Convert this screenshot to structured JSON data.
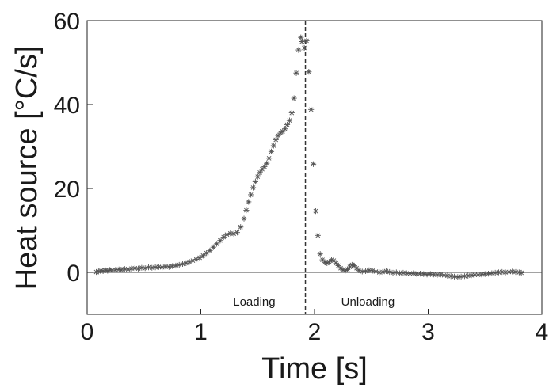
{
  "chart_data": {
    "type": "scatter",
    "xlabel": "Time [s]",
    "ylabel": "Heat source [°C/s]",
    "xlim": [
      0,
      4
    ],
    "ylim": [
      -10,
      60
    ],
    "xticks": [
      "0",
      "1",
      "2",
      "3",
      "4"
    ],
    "yticks": [
      "0",
      "20",
      "40",
      "60"
    ],
    "grid": false,
    "marker": "asterisk",
    "marker_color": "#555555",
    "vline": {
      "x": 1.92,
      "style": "dashed"
    },
    "hline": {
      "y": 0
    },
    "annotations": [
      {
        "text": "Loading",
        "x": 1.47,
        "y": -7
      },
      {
        "text": "Unloading",
        "x": 2.47,
        "y": -7
      }
    ],
    "points": [
      [
        0.08,
        0.1
      ],
      [
        0.1,
        0.2
      ],
      [
        0.12,
        0.4
      ],
      [
        0.14,
        0.3
      ],
      [
        0.16,
        0.5
      ],
      [
        0.18,
        0.4
      ],
      [
        0.2,
        0.6
      ],
      [
        0.22,
        0.5
      ],
      [
        0.25,
        0.6
      ],
      [
        0.28,
        0.7
      ],
      [
        0.3,
        0.6
      ],
      [
        0.33,
        0.8
      ],
      [
        0.36,
        0.7
      ],
      [
        0.39,
        0.9
      ],
      [
        0.42,
        1.0
      ],
      [
        0.45,
        0.9
      ],
      [
        0.48,
        1.1
      ],
      [
        0.51,
        1.0
      ],
      [
        0.54,
        1.2
      ],
      [
        0.57,
        1.1
      ],
      [
        0.6,
        1.2
      ],
      [
        0.63,
        1.3
      ],
      [
        0.66,
        1.2
      ],
      [
        0.69,
        1.4
      ],
      [
        0.72,
        1.3
      ],
      [
        0.75,
        1.5
      ],
      [
        0.78,
        1.6
      ],
      [
        0.81,
        1.8
      ],
      [
        0.84,
        2.0
      ],
      [
        0.87,
        2.2
      ],
      [
        0.9,
        2.5
      ],
      [
        0.93,
        2.8
      ],
      [
        0.96,
        3.1
      ],
      [
        0.99,
        3.5
      ],
      [
        1.02,
        4.0
      ],
      [
        1.05,
        4.6
      ],
      [
        1.08,
        5.2
      ],
      [
        1.11,
        6.0
      ],
      [
        1.14,
        6.8
      ],
      [
        1.17,
        7.6
      ],
      [
        1.2,
        8.4
      ],
      [
        1.23,
        9.0
      ],
      [
        1.26,
        9.3
      ],
      [
        1.29,
        9.2
      ],
      [
        1.32,
        9.5
      ],
      [
        1.35,
        10.8
      ],
      [
        1.38,
        12.8
      ],
      [
        1.4,
        14.8
      ],
      [
        1.42,
        16.8
      ],
      [
        1.44,
        18.5
      ],
      [
        1.46,
        20.2
      ],
      [
        1.48,
        21.6
      ],
      [
        1.5,
        22.8
      ],
      [
        1.52,
        23.8
      ],
      [
        1.54,
        24.6
      ],
      [
        1.56,
        25.2
      ],
      [
        1.58,
        26.0
      ],
      [
        1.6,
        27.2
      ],
      [
        1.62,
        28.8
      ],
      [
        1.64,
        30.2
      ],
      [
        1.66,
        31.6
      ],
      [
        1.68,
        32.6
      ],
      [
        1.7,
        33.2
      ],
      [
        1.72,
        33.6
      ],
      [
        1.74,
        34.2
      ],
      [
        1.76,
        35.2
      ],
      [
        1.78,
        36.2
      ],
      [
        1.8,
        38.0
      ],
      [
        1.82,
        41.5
      ],
      [
        1.84,
        47.5
      ],
      [
        1.86,
        53.0
      ],
      [
        1.88,
        56.0
      ],
      [
        1.89,
        55.0
      ],
      [
        1.91,
        53.5
      ],
      [
        1.93,
        55.2
      ],
      [
        1.95,
        47.8
      ],
      [
        1.97,
        38.8
      ],
      [
        1.99,
        25.8
      ],
      [
        2.01,
        14.6
      ],
      [
        2.03,
        8.8
      ],
      [
        2.05,
        4.4
      ],
      [
        2.07,
        3.0
      ],
      [
        2.09,
        2.4
      ],
      [
        2.11,
        2.2
      ],
      [
        2.13,
        2.5
      ],
      [
        2.15,
        3.0
      ],
      [
        2.17,
        2.8
      ],
      [
        2.19,
        2.2
      ],
      [
        2.21,
        1.6
      ],
      [
        2.23,
        1.0
      ],
      [
        2.25,
        0.6
      ],
      [
        2.27,
        0.4
      ],
      [
        2.29,
        0.7
      ],
      [
        2.31,
        1.3
      ],
      [
        2.33,
        1.8
      ],
      [
        2.35,
        1.6
      ],
      [
        2.37,
        1.0
      ],
      [
        2.39,
        0.5
      ],
      [
        2.42,
        0.2
      ],
      [
        2.45,
        0.3
      ],
      [
        2.48,
        0.5
      ],
      [
        2.51,
        0.4
      ],
      [
        2.54,
        0.2
      ],
      [
        2.57,
        0.0
      ],
      [
        2.6,
        0.1
      ],
      [
        2.63,
        0.3
      ],
      [
        2.66,
        0.1
      ],
      [
        2.69,
        -0.1
      ],
      [
        2.72,
        0.0
      ],
      [
        2.75,
        -0.2
      ],
      [
        2.78,
        -0.1
      ],
      [
        2.81,
        -0.2
      ],
      [
        2.84,
        -0.3
      ],
      [
        2.87,
        -0.2
      ],
      [
        2.9,
        -0.4
      ],
      [
        2.93,
        -0.3
      ],
      [
        2.96,
        -0.4
      ],
      [
        2.99,
        -0.5
      ],
      [
        3.02,
        -0.4
      ],
      [
        3.05,
        -0.5
      ],
      [
        3.08,
        -0.6
      ],
      [
        3.11,
        -0.5
      ],
      [
        3.14,
        -0.7
      ],
      [
        3.17,
        -0.8
      ],
      [
        3.2,
        -0.9
      ],
      [
        3.23,
        -1.0
      ],
      [
        3.26,
        -1.1
      ],
      [
        3.29,
        -1.0
      ],
      [
        3.32,
        -0.9
      ],
      [
        3.35,
        -0.8
      ],
      [
        3.38,
        -0.7
      ],
      [
        3.41,
        -0.6
      ],
      [
        3.44,
        -0.6
      ],
      [
        3.47,
        -0.5
      ],
      [
        3.5,
        -0.4
      ],
      [
        3.53,
        -0.3
      ],
      [
        3.56,
        -0.2
      ],
      [
        3.59,
        -0.1
      ],
      [
        3.62,
        0.0
      ],
      [
        3.65,
        0.1
      ],
      [
        3.68,
        0.0
      ],
      [
        3.71,
        0.1
      ],
      [
        3.74,
        0.2
      ],
      [
        3.77,
        0.1
      ],
      [
        3.8,
        0.0
      ],
      [
        3.82,
        -0.1
      ]
    ]
  }
}
